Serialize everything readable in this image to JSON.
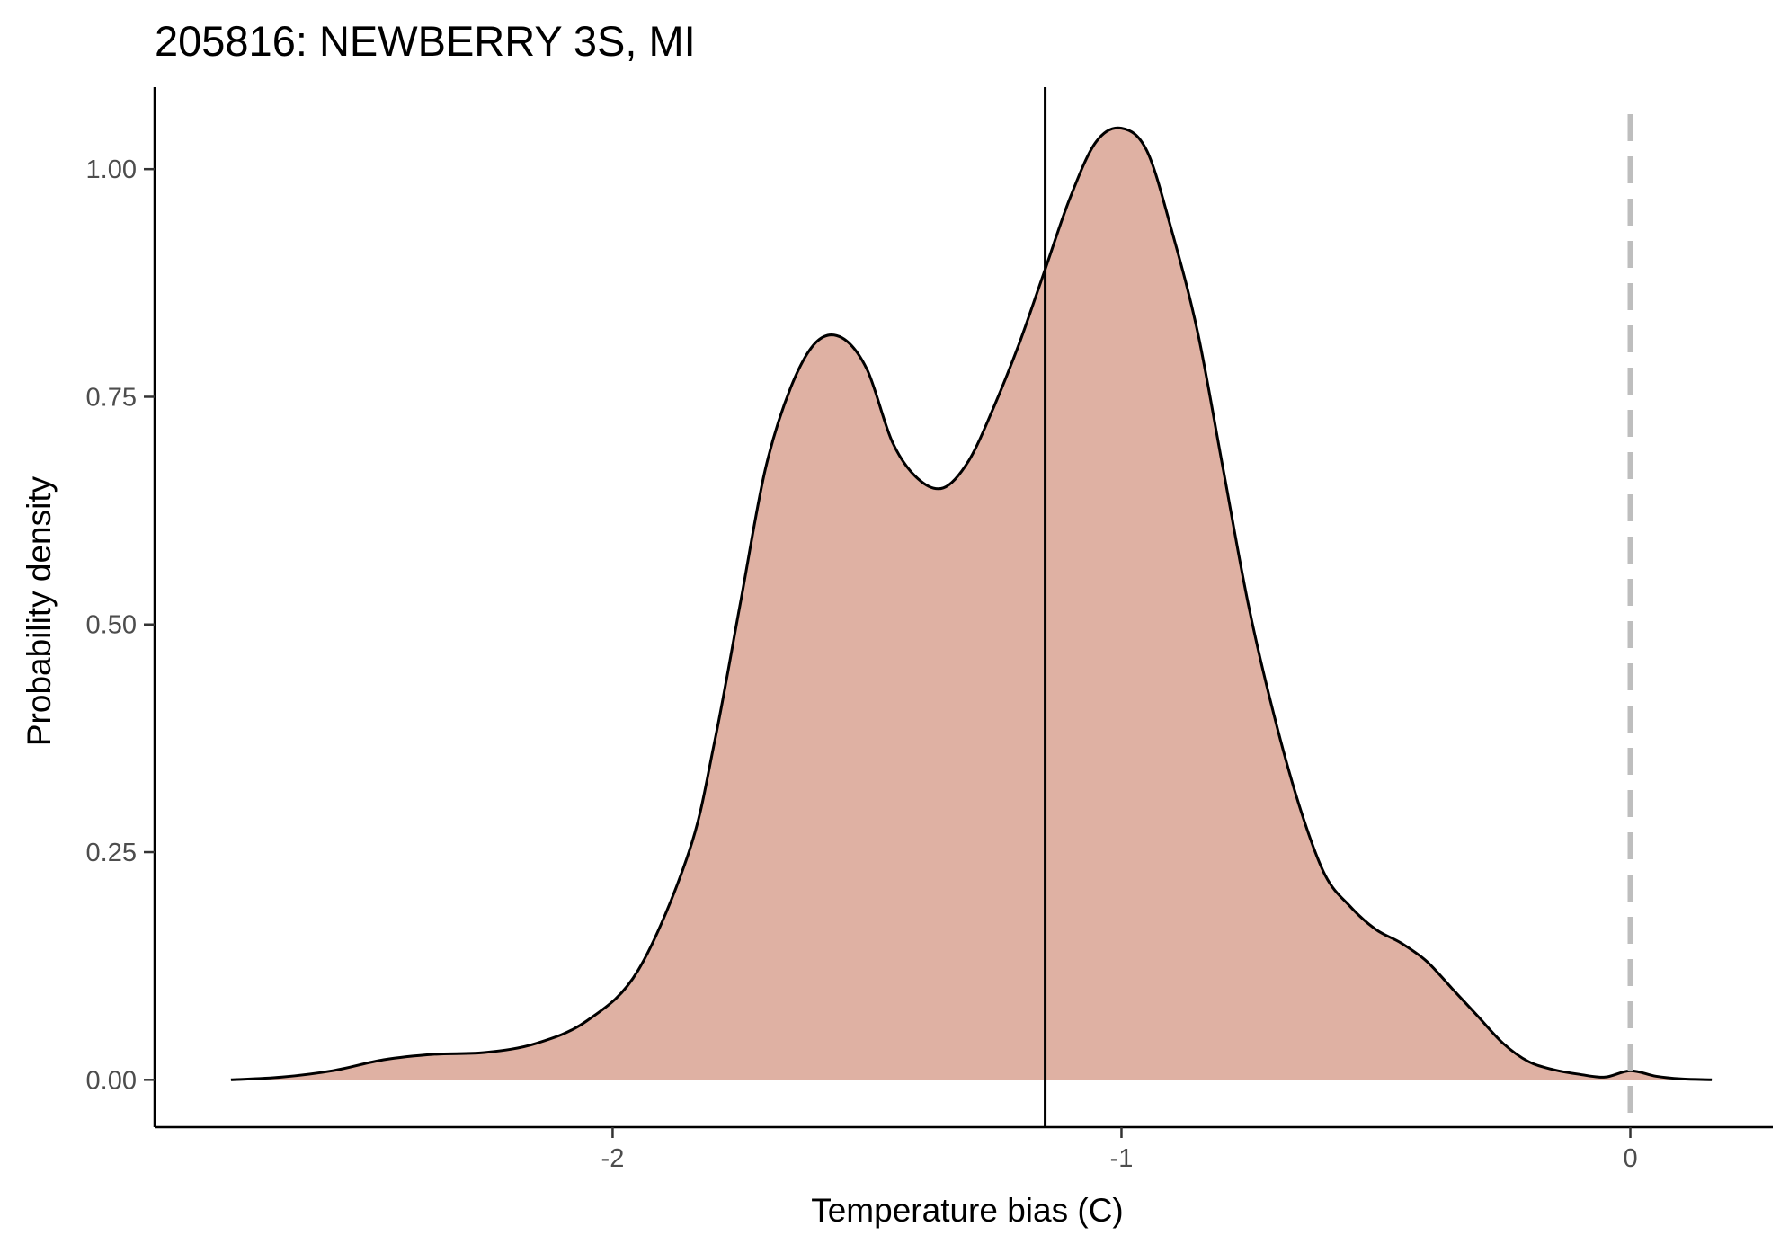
{
  "chart_data": {
    "type": "area",
    "title": "205816: NEWBERRY 3S, MI",
    "xlabel": "Temperature bias (C)",
    "ylabel": "Probability density",
    "xlim": [
      -2.9,
      0.28
    ],
    "ylim": [
      -0.052,
      1.09
    ],
    "x_ticks": [
      -2,
      -1,
      0
    ],
    "x_tick_labels": [
      "-2",
      "-1",
      "0"
    ],
    "y_ticks": [
      0,
      0.25,
      0.5,
      0.75,
      1.0
    ],
    "y_tick_labels": [
      "0.00",
      "0.25",
      "0.50",
      "0.75",
      "1.00"
    ],
    "grid": false,
    "legend": "none",
    "fill_color": "#dfb1a3",
    "line_color": "#000000",
    "reference_lines": [
      {
        "x": -1.15,
        "style": "solid",
        "color": "#000000"
      },
      {
        "x": 0,
        "style": "dashed",
        "color": "#bebebe"
      }
    ],
    "series": [
      {
        "x": [
          -2.75,
          -2.65,
          -2.55,
          -2.45,
          -2.35,
          -2.25,
          -2.15,
          -2.05,
          -1.95,
          -1.85,
          -1.8,
          -1.75,
          -1.7,
          -1.65,
          -1.6,
          -1.55,
          -1.5,
          -1.45,
          -1.4,
          -1.35,
          -1.3,
          -1.25,
          -1.2,
          -1.15,
          -1.1,
          -1.05,
          -1.0,
          -0.95,
          -0.9,
          -0.85,
          -0.8,
          -0.75,
          -0.7,
          -0.65,
          -0.6,
          -0.55,
          -0.5,
          -0.45,
          -0.4,
          -0.35,
          -0.3,
          -0.25,
          -0.2,
          -0.15,
          -0.1,
          -0.05,
          0.0,
          0.05,
          0.1,
          0.16
        ],
        "y": [
          0.0,
          0.003,
          0.01,
          0.022,
          0.028,
          0.03,
          0.04,
          0.065,
          0.12,
          0.25,
          0.37,
          0.52,
          0.67,
          0.76,
          0.81,
          0.815,
          0.78,
          0.7,
          0.66,
          0.65,
          0.68,
          0.74,
          0.81,
          0.89,
          0.97,
          1.03,
          1.045,
          1.02,
          0.93,
          0.82,
          0.67,
          0.52,
          0.4,
          0.3,
          0.225,
          0.19,
          0.165,
          0.15,
          0.13,
          0.1,
          0.07,
          0.04,
          0.02,
          0.011,
          0.006,
          0.003,
          0.01,
          0.004,
          0.001,
          0.0
        ]
      }
    ]
  }
}
